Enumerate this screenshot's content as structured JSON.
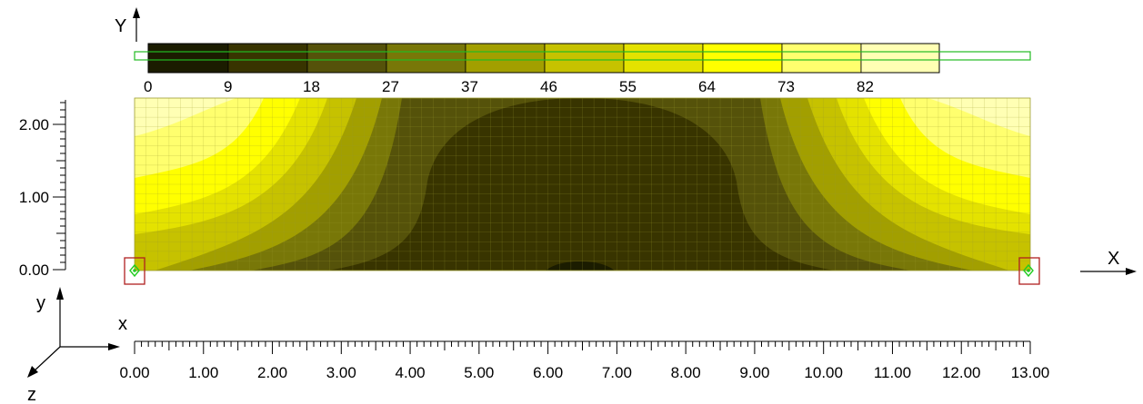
{
  "axis_labels": {
    "top_y": "Y",
    "right_x": "X",
    "triad_y": "y",
    "triad_x": "x",
    "triad_z": "z"
  },
  "legend": {
    "labels": [
      "0",
      "9",
      "18",
      "27",
      "37",
      "46",
      "55",
      "64",
      "73",
      "82"
    ],
    "colors": [
      "#1b1c00",
      "#383400",
      "#55520a",
      "#787708",
      "#a29f00",
      "#c6c200",
      "#e4e200",
      "#ffff00",
      "#ffff6e",
      "#ffffb4"
    ]
  },
  "vertical_scale": {
    "labels": [
      "2.00",
      "1.00",
      "0.00"
    ],
    "values": [
      2,
      1,
      0
    ],
    "range": [
      0,
      2.2
    ]
  },
  "horizontal_scale": {
    "labels": [
      "0.00",
      "1.00",
      "2.00",
      "3.00",
      "4.00",
      "5.00",
      "6.00",
      "7.00",
      "8.00",
      "9.00",
      "10.00",
      "11.00",
      "12.00",
      "13.00"
    ],
    "range": [
      0,
      13
    ]
  },
  "contour_plot": {
    "span": 13,
    "height": 2.2,
    "supports_at": [
      0,
      13
    ],
    "support_types": [
      "pinned",
      "pinned"
    ]
  },
  "colors": {
    "element_edges": "#9c9c30",
    "support_box": "#b02020",
    "support_marker": "#22cc22",
    "legend_outline": "#22bb22"
  }
}
